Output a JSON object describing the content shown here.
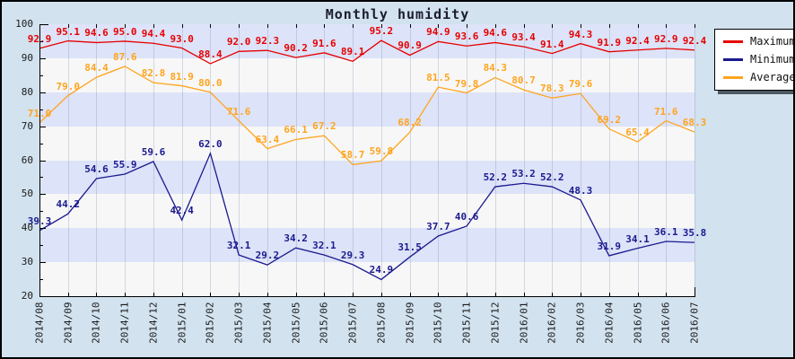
{
  "title": "Monthly humidity",
  "chart_data": {
    "type": "line",
    "title": "Monthly humidity",
    "categories": [
      "2014/08",
      "2014/09",
      "2014/10",
      "2014/11",
      "2014/12",
      "2015/01",
      "2015/02",
      "2015/03",
      "2015/04",
      "2015/05",
      "2015/06",
      "2015/07",
      "2015/08",
      "2015/09",
      "2015/10",
      "2015/11",
      "2015/12",
      "2016/01",
      "2016/02",
      "2016/03",
      "2016/04",
      "2016/05",
      "2016/06",
      "2016/07"
    ],
    "series": [
      {
        "name": "Maximum",
        "color": "#e60000",
        "values": [
          92.9,
          95.1,
          94.6,
          95.0,
          94.4,
          93.0,
          88.4,
          92.0,
          92.3,
          90.2,
          91.6,
          89.1,
          95.2,
          90.9,
          94.9,
          93.6,
          94.6,
          93.4,
          91.4,
          94.3,
          91.9,
          92.4,
          92.9,
          92.4
        ]
      },
      {
        "name": "Minimum",
        "color": "#1a1a8f",
        "values": [
          39.3,
          44.2,
          54.6,
          55.9,
          59.6,
          42.4,
          62.0,
          32.1,
          29.2,
          34.2,
          32.1,
          29.3,
          24.9,
          31.5,
          37.7,
          40.6,
          52.2,
          53.2,
          52.2,
          48.3,
          31.9,
          34.1,
          36.1,
          35.8
        ]
      },
      {
        "name": "Average",
        "color": "#ffa41e",
        "values": [
          71.0,
          79.0,
          84.4,
          87.6,
          82.8,
          81.9,
          80.0,
          71.6,
          63.4,
          66.1,
          67.2,
          58.7,
          59.8,
          68.2,
          81.5,
          79.8,
          84.3,
          80.7,
          78.3,
          79.6,
          69.2,
          65.4,
          71.6,
          68.3
        ]
      }
    ],
    "ylim": [
      20,
      100
    ],
    "ytick_major": 10,
    "ytick_minor": 5,
    "grid": "vertical",
    "legend_position": "top-right",
    "band_colors": {
      "even": "#f7f7f7",
      "odd": "#dde3f8"
    },
    "plot_background": "#d2e2ef",
    "value_labels_decimals": 1
  }
}
